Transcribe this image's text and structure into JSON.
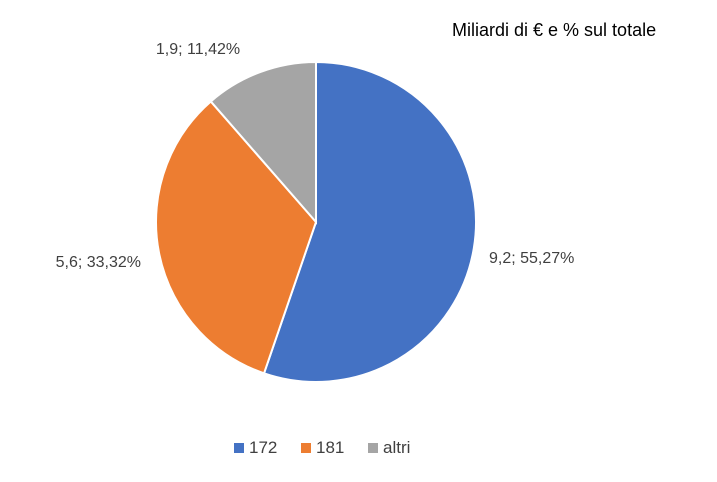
{
  "chart_data": {
    "type": "pie",
    "title": "Miliardi di € e % sul totale",
    "slices": [
      {
        "name": "172",
        "value": 9.2,
        "percent": 55.27,
        "label": "9,2; 55,27%",
        "color": "#4472C4"
      },
      {
        "name": "181",
        "value": 5.6,
        "percent": 33.32,
        "label": "5,6; 33,32%",
        "color": "#ED7D31"
      },
      {
        "name": "altri",
        "value": 1.9,
        "percent": 11.42,
        "label": "1,9; 11,42%",
        "color": "#A5A5A5"
      }
    ],
    "legend_position": "bottom"
  }
}
